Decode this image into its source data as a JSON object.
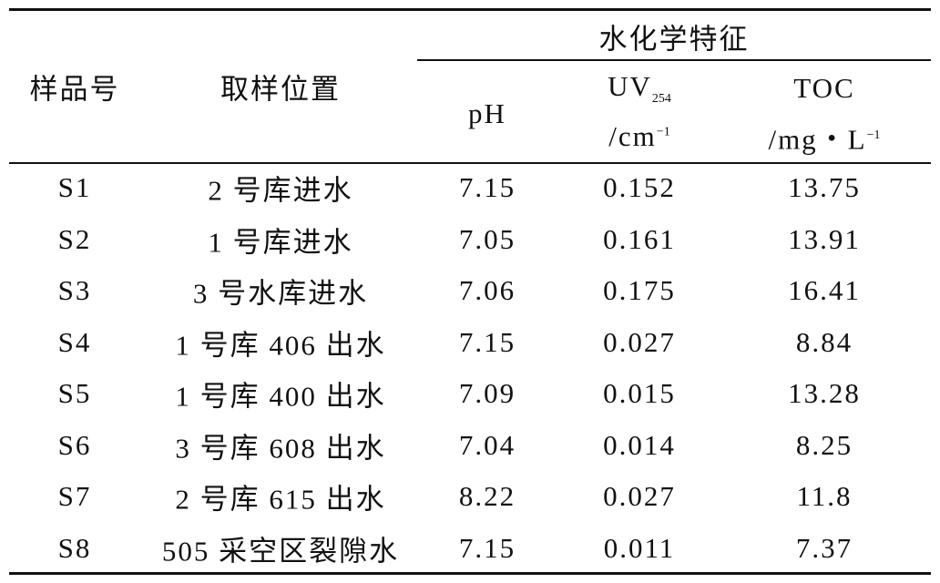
{
  "table": {
    "header": {
      "sample": "样品号",
      "location": "取样位置",
      "group": "水化学特征",
      "ph": "pH",
      "uv": {
        "name": "UV",
        "sub": "254",
        "unit": "/cm",
        "sup": "−1"
      },
      "toc": {
        "name": "TOC",
        "unit": "/mg・L",
        "sup": "−1"
      }
    },
    "rows": [
      [
        "S1",
        "2 号库进水",
        "7.15",
        "0.152",
        "13.75"
      ],
      [
        "S2",
        "1 号库进水",
        "7.05",
        "0.161",
        "13.91"
      ],
      [
        "S3",
        "3 号水库进水",
        "7.06",
        "0.175",
        "16.41"
      ],
      [
        "S4",
        "1 号库 406 出水",
        "7.15",
        "0.027",
        "8.84"
      ],
      [
        "S5",
        "1 号库 400 出水",
        "7.09",
        "0.015",
        "13.28"
      ],
      [
        "S6",
        "3 号库 608 出水",
        "7.04",
        "0.014",
        "8.25"
      ],
      [
        "S7",
        "2 号库 615 出水",
        "8.22",
        "0.027",
        "11.8"
      ],
      [
        "S8",
        "505 采空区裂隙水",
        "7.15",
        "0.011",
        "7.37"
      ]
    ]
  }
}
